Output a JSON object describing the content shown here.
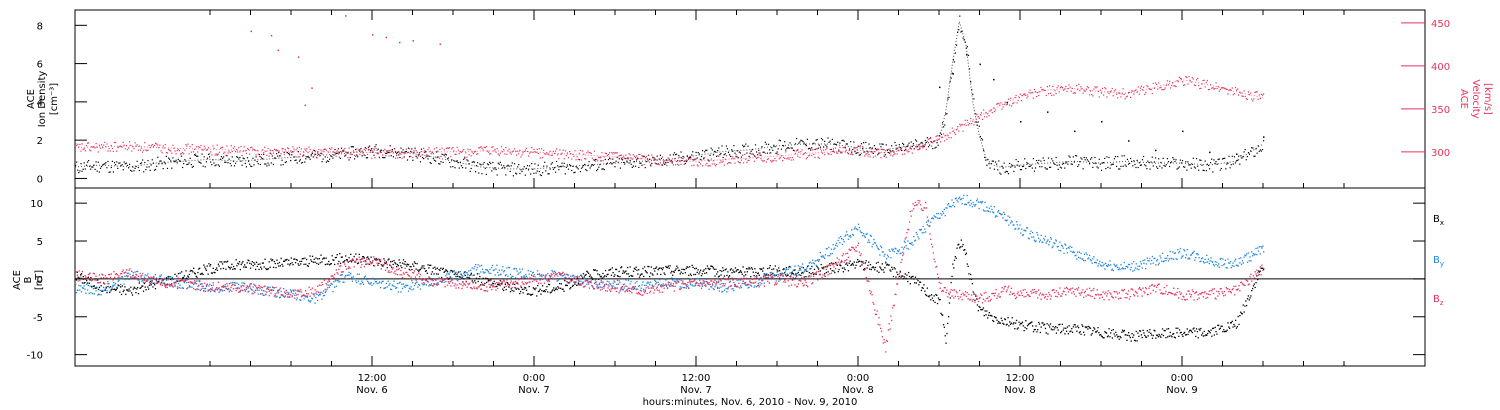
{
  "chart_data": [
    {
      "type": "scatter",
      "panel": "plasma",
      "ylabel_left": [
        "ACE",
        "Ion Density",
        "[cm⁻³]"
      ],
      "ylabel_right": [
        "ACE",
        "Velocity",
        "[km/s]"
      ],
      "ylim_left": [
        -0.5,
        8.8
      ],
      "ylim_right": [
        258,
        465
      ],
      "yticks_left": [
        "0",
        "2",
        "4",
        "6",
        "8"
      ],
      "yticks_right": [
        "300",
        "350",
        "400",
        "450"
      ],
      "colors": {
        "density": "#000000",
        "velocity": "#e8335c"
      },
      "series": [
        {
          "name": "Ion Density",
          "axis": "left",
          "x_hours": [
            -10,
            -8,
            -6,
            -4,
            -2,
            0,
            2,
            4,
            6,
            8,
            10,
            12,
            14,
            16,
            18,
            20,
            22,
            24,
            26,
            28,
            30,
            32,
            34,
            36,
            38,
            40,
            42,
            44,
            46,
            48,
            50,
            52,
            54,
            54.5,
            55,
            55.5,
            56,
            56.5,
            57,
            57.5,
            58,
            58.5,
            59,
            60,
            62,
            64,
            66,
            68,
            70,
            72,
            74,
            76,
            78
          ],
          "values": [
            0.6,
            0.7,
            0.6,
            0.8,
            0.9,
            1.0,
            0.9,
            1.0,
            1.1,
            1.2,
            1.3,
            1.5,
            1.4,
            1.2,
            0.9,
            0.6,
            0.5,
            0.5,
            0.6,
            0.7,
            0.8,
            0.9,
            1.0,
            1.2,
            1.4,
            1.5,
            1.7,
            1.8,
            1.8,
            1.6,
            1.5,
            1.7,
            2.0,
            3.5,
            6.0,
            8.2,
            7.0,
            4.0,
            2.2,
            1.0,
            0.7,
            0.6,
            0.6,
            0.7,
            0.8,
            0.9,
            0.8,
            0.9,
            0.8,
            0.8,
            0.7,
            0.9,
            1.8
          ]
        },
        {
          "name": "Velocity",
          "axis": "right",
          "x_hours": [
            -10,
            -8,
            -6,
            -4,
            -2,
            0,
            2,
            4,
            6,
            8,
            10,
            12,
            14,
            16,
            18,
            20,
            22,
            24,
            26,
            28,
            30,
            32,
            34,
            36,
            38,
            40,
            42,
            44,
            46,
            48,
            50,
            52,
            54,
            56,
            58,
            60,
            62,
            64,
            66,
            68,
            70,
            72,
            74,
            76,
            78
          ],
          "values": [
            305,
            306,
            307,
            305,
            304,
            303,
            302,
            301,
            301,
            300,
            300,
            299,
            299,
            300,
            300,
            301,
            301,
            300,
            298,
            296,
            294,
            292,
            290,
            289,
            291,
            293,
            295,
            298,
            300,
            302,
            299,
            303,
            315,
            333,
            350,
            365,
            372,
            374,
            370,
            368,
            375,
            384,
            378,
            370,
            363
          ]
        }
      ],
      "scattered_velocity_points": {
        "x_hours": [
          3,
          4.5,
          5,
          6.5,
          7,
          7.5,
          10,
          12,
          13,
          14,
          15,
          17
        ],
        "values": [
          441,
          436,
          419,
          411,
          355,
          375,
          459,
          437,
          434,
          428,
          430,
          426
        ]
      },
      "scattered_density_points": {
        "x_hours": [
          54,
          55,
          56,
          57,
          58,
          59,
          60,
          62,
          64,
          66,
          68,
          70,
          72,
          74,
          76,
          78
        ],
        "values": [
          4.8,
          5.5,
          6.5,
          6.0,
          5.2,
          4.0,
          3.0,
          3.5,
          2.5,
          3.0,
          2.0,
          1.5,
          2.5,
          1.4,
          1.3,
          2.2
        ]
      }
    },
    {
      "type": "scatter",
      "panel": "magnetic",
      "ylabel_left": [
        "ACE",
        "B",
        "[nT]"
      ],
      "ylim": [
        -11.5,
        12
      ],
      "yticks": [
        "-10",
        "-5",
        "0",
        "5",
        "10"
      ],
      "legend_placement": "right",
      "legend": [
        {
          "label": "B",
          "sub": "x",
          "color": "#000000"
        },
        {
          "label": "B",
          "sub": "y",
          "color": "#1f86e0"
        },
        {
          "label": "B",
          "sub": "z",
          "color": "#e8335c"
        }
      ],
      "series": [
        {
          "name": "Bx",
          "x_hours": [
            -10,
            -8,
            -6,
            -4,
            -2,
            0,
            2,
            4,
            6,
            8,
            10,
            12,
            14,
            16,
            18,
            20,
            22,
            24,
            26,
            28,
            30,
            32,
            34,
            36,
            38,
            40,
            42,
            44,
            46,
            48,
            50,
            52,
            54,
            54.5,
            55,
            55.5,
            56,
            56.5,
            57,
            58,
            59,
            60,
            62,
            64,
            66,
            68,
            70,
            72,
            74,
            76,
            77,
            78
          ],
          "values": [
            0.5,
            -1.0,
            -1.5,
            -0.5,
            0.5,
            1.5,
            2.0,
            2.0,
            2.2,
            2.5,
            2.8,
            2.5,
            2.0,
            1.5,
            0.5,
            0.0,
            -1.0,
            -1.5,
            -1.0,
            0.5,
            1.0,
            1.0,
            1.2,
            1.2,
            1.0,
            1.0,
            1.2,
            1.0,
            1.5,
            2.0,
            1.5,
            0.0,
            -3.0,
            -8.0,
            2.0,
            5.0,
            3.0,
            -2.0,
            -4.0,
            -5.0,
            -5.5,
            -6.0,
            -6.5,
            -6.5,
            -7.0,
            -7.5,
            -7.2,
            -7.0,
            -7.0,
            -6.0,
            -2.0,
            2.0
          ]
        },
        {
          "name": "By",
          "x_hours": [
            -10,
            -8,
            -6,
            -4,
            -2,
            0,
            2,
            4,
            6,
            8,
            10,
            12,
            14,
            16,
            18,
            20,
            22,
            24,
            26,
            28,
            30,
            32,
            34,
            36,
            38,
            40,
            42,
            44,
            46,
            48,
            50,
            52,
            53,
            54,
            55,
            56,
            57,
            58,
            59,
            60,
            62,
            64,
            66,
            68,
            70,
            72,
            74,
            76,
            78
          ],
          "values": [
            -1.0,
            -1.5,
            0.5,
            0.0,
            -0.5,
            -1.0,
            -1.0,
            -1.5,
            -2.0,
            -2.5,
            0.5,
            -0.5,
            -1.0,
            -0.5,
            0.5,
            1.5,
            1.0,
            0.5,
            0.5,
            -0.5,
            -0.5,
            -1.0,
            -0.5,
            -0.5,
            -1.0,
            -0.5,
            0.5,
            1.5,
            4.0,
            7.0,
            3.0,
            5.0,
            7.0,
            8.5,
            10.0,
            10.5,
            10.0,
            9.0,
            8.0,
            6.5,
            5.0,
            3.5,
            2.0,
            1.5,
            2.5,
            3.5,
            2.5,
            2.0,
            4.0
          ]
        },
        {
          "name": "Bz",
          "x_hours": [
            -10,
            -8,
            -6,
            -4,
            -2,
            0,
            2,
            4,
            6,
            8,
            10,
            12,
            14,
            16,
            18,
            20,
            22,
            24,
            26,
            28,
            30,
            32,
            34,
            36,
            38,
            40,
            42,
            44,
            46,
            48,
            50,
            52,
            53,
            54,
            55,
            56,
            57,
            58,
            59,
            60,
            62,
            64,
            66,
            68,
            70,
            72,
            74,
            76,
            78
          ],
          "values": [
            0.5,
            0.0,
            1.0,
            -0.5,
            -0.5,
            -1.0,
            -1.0,
            -1.5,
            -2.0,
            -1.5,
            2.0,
            2.5,
            1.0,
            0.0,
            -0.5,
            -1.0,
            -0.5,
            0.0,
            0.5,
            -0.5,
            -1.0,
            -1.5,
            -1.0,
            -0.5,
            -0.5,
            -0.5,
            0.0,
            -0.5,
            1.5,
            4.5,
            -9.0,
            10.0,
            9.5,
            -1.0,
            -2.0,
            -2.0,
            -2.5,
            -2.0,
            -1.5,
            -2.0,
            -2.0,
            -1.5,
            -2.0,
            -2.0,
            -1.0,
            -2.0,
            -2.0,
            -1.5,
            1.5
          ]
        }
      ]
    }
  ],
  "x_axis": {
    "range_hours": [
      -10,
      90
    ],
    "ticks": [
      {
        "hour": 12,
        "time": "12:00",
        "date": "Nov. 6"
      },
      {
        "hour": 24,
        "time": "0:00",
        "date": "Nov. 7"
      },
      {
        "hour": 36,
        "time": "12:00",
        "date": "Nov. 7"
      },
      {
        "hour": 48,
        "time": "0:00",
        "date": "Nov. 8"
      },
      {
        "hour": 60,
        "time": "12:00",
        "date": "Nov. 8"
      },
      {
        "hour": 72,
        "time": "0:00",
        "date": "Nov. 9"
      }
    ],
    "label": "hours:minutes, Nov.  6, 2010 - Nov.  9, 2010"
  }
}
